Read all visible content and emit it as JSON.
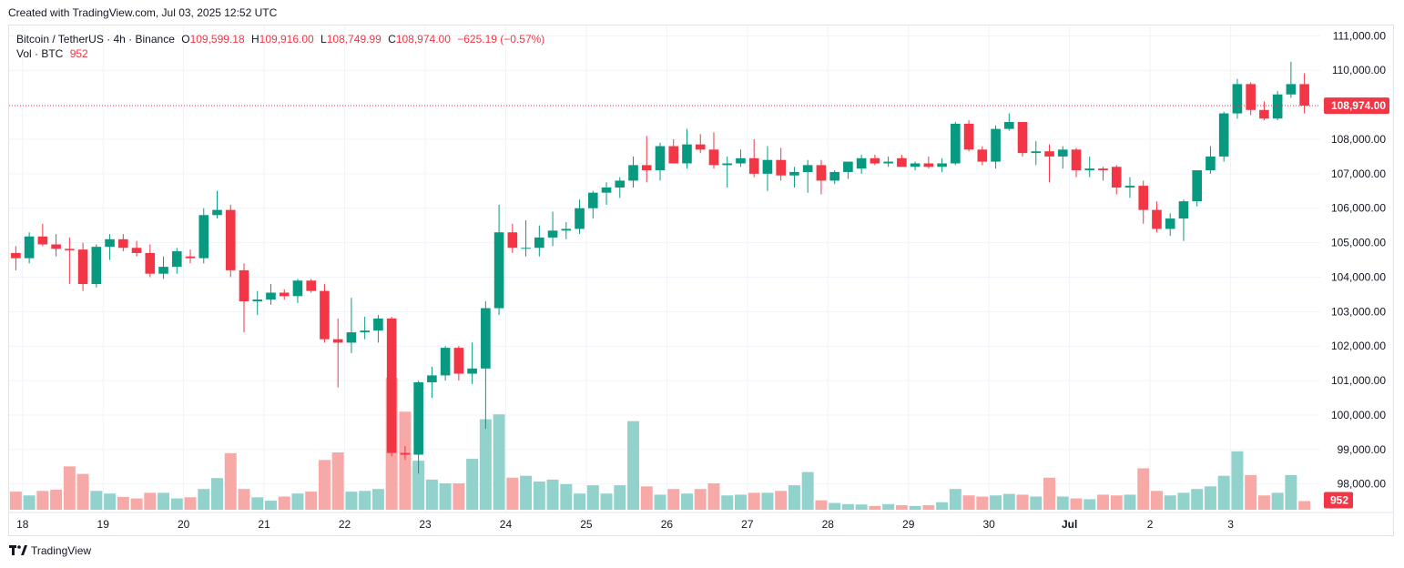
{
  "header": {
    "created_with": "Created with TradingView.com, Jul 03, 2025 12:52 UTC"
  },
  "legend": {
    "symbol": "Bitcoin / TetherUS · 4h · Binance",
    "o_label": "O",
    "o_value": "109,599.18",
    "h_label": "H",
    "h_value": "109,916.00",
    "l_label": "L",
    "l_value": "108,749.99",
    "c_label": "C",
    "c_value": "108,974.00",
    "change": "−625.19 (−0.57%)",
    "vol_label": "Vol · BTC",
    "vol_value": "952"
  },
  "footer": {
    "brand": "TradingView"
  },
  "colors": {
    "up": "#089981",
    "down": "#f23645",
    "up_vol": "#92d2cc",
    "down_vol": "#f7a9a7",
    "grid": "#f0f3fa",
    "axis_text": "#131722"
  },
  "chart_data": {
    "type": "candlestick",
    "interval": "4h",
    "last_price": 108974,
    "last_price_label": "108,974.00",
    "last_volume_label": "952",
    "y_range": [
      97200,
      111300
    ],
    "y_ticks": [
      98000,
      99000,
      100000,
      101000,
      102000,
      103000,
      104000,
      105000,
      106000,
      107000,
      108000,
      109000,
      110000,
      111000
    ],
    "y_tick_labels": [
      "98,000.00",
      "99,000.00",
      "100,000.00",
      "101,000.00",
      "102,000.00",
      "103,000.00",
      "104,000.00",
      "105,000.00",
      "106,000.00",
      "107,000.00",
      "108,000.00",
      "109,000.00",
      "110,000.00",
      "111,000.00"
    ],
    "x_ticks": [
      {
        "label": "18",
        "index": 0.5
      },
      {
        "label": "19",
        "index": 6.5
      },
      {
        "label": "20",
        "index": 12.5
      },
      {
        "label": "21",
        "index": 18.5
      },
      {
        "label": "22",
        "index": 24.5
      },
      {
        "label": "23",
        "index": 30.5
      },
      {
        "label": "24",
        "index": 36.5
      },
      {
        "label": "25",
        "index": 42.5
      },
      {
        "label": "26",
        "index": 48.5
      },
      {
        "label": "27",
        "index": 54.5
      },
      {
        "label": "28",
        "index": 60.5
      },
      {
        "label": "29",
        "index": 66.5
      },
      {
        "label": "30",
        "index": 72.5
      },
      {
        "label": "Jul",
        "index": 78.5
      },
      {
        "label": "2",
        "index": 84.5
      },
      {
        "label": "3",
        "index": 90.5
      }
    ],
    "candles": [
      {
        "o": 104700,
        "h": 104900,
        "l": 104200,
        "c": 104550,
        "v": 48
      },
      {
        "o": 104550,
        "h": 105300,
        "l": 104400,
        "c": 105180,
        "v": 38
      },
      {
        "o": 105180,
        "h": 105550,
        "l": 104900,
        "c": 104950,
        "v": 50
      },
      {
        "o": 104950,
        "h": 105250,
        "l": 104600,
        "c": 104820,
        "v": 53
      },
      {
        "o": 104820,
        "h": 105150,
        "l": 103800,
        "c": 104780,
        "v": 115
      },
      {
        "o": 104800,
        "h": 105000,
        "l": 103600,
        "c": 103800,
        "v": 95
      },
      {
        "o": 103800,
        "h": 104950,
        "l": 103700,
        "c": 104880,
        "v": 50
      },
      {
        "o": 104880,
        "h": 105250,
        "l": 104500,
        "c": 105100,
        "v": 43
      },
      {
        "o": 105100,
        "h": 105250,
        "l": 104750,
        "c": 104850,
        "v": 34
      },
      {
        "o": 104850,
        "h": 105050,
        "l": 104600,
        "c": 104700,
        "v": 30
      },
      {
        "o": 104700,
        "h": 104950,
        "l": 104000,
        "c": 104100,
        "v": 45
      },
      {
        "o": 104100,
        "h": 104600,
        "l": 103950,
        "c": 104300,
        "v": 45
      },
      {
        "o": 104300,
        "h": 104850,
        "l": 104100,
        "c": 104750,
        "v": 30
      },
      {
        "o": 104600,
        "h": 104800,
        "l": 104400,
        "c": 104550,
        "v": 33
      },
      {
        "o": 104550,
        "h": 106000,
        "l": 104400,
        "c": 105800,
        "v": 55
      },
      {
        "o": 105800,
        "h": 106500,
        "l": 105700,
        "c": 105950,
        "v": 84
      },
      {
        "o": 105950,
        "h": 106100,
        "l": 104000,
        "c": 104200,
        "v": 150
      },
      {
        "o": 104200,
        "h": 104400,
        "l": 102400,
        "c": 103300,
        "v": 55
      },
      {
        "o": 103300,
        "h": 103600,
        "l": 102900,
        "c": 103350,
        "v": 33
      },
      {
        "o": 103350,
        "h": 103800,
        "l": 103200,
        "c": 103550,
        "v": 24
      },
      {
        "o": 103550,
        "h": 103650,
        "l": 103350,
        "c": 103450,
        "v": 35
      },
      {
        "o": 103450,
        "h": 103950,
        "l": 103250,
        "c": 103900,
        "v": 43
      },
      {
        "o": 103900,
        "h": 103950,
        "l": 103550,
        "c": 103600,
        "v": 48
      },
      {
        "o": 103600,
        "h": 103800,
        "l": 102100,
        "c": 102200,
        "v": 132
      },
      {
        "o": 102200,
        "h": 102800,
        "l": 100800,
        "c": 102100,
        "v": 152
      },
      {
        "o": 102100,
        "h": 103400,
        "l": 101800,
        "c": 102400,
        "v": 48
      },
      {
        "o": 102400,
        "h": 102850,
        "l": 102200,
        "c": 102450,
        "v": 50
      },
      {
        "o": 102450,
        "h": 102900,
        "l": 102100,
        "c": 102800,
        "v": 55
      },
      {
        "o": 102800,
        "h": 102850,
        "l": 98800,
        "c": 98900,
        "v": 350
      },
      {
        "o": 98900,
        "h": 99100,
        "l": 98700,
        "c": 98850,
        "v": 260
      },
      {
        "o": 98850,
        "h": 101000,
        "l": 98300,
        "c": 100950,
        "v": 130
      },
      {
        "o": 100950,
        "h": 101400,
        "l": 100500,
        "c": 101150,
        "v": 80
      },
      {
        "o": 101150,
        "h": 102000,
        "l": 101000,
        "c": 101950,
        "v": 70
      },
      {
        "o": 101950,
        "h": 102000,
        "l": 101000,
        "c": 101200,
        "v": 70
      },
      {
        "o": 101200,
        "h": 102100,
        "l": 100900,
        "c": 101350,
        "v": 135
      },
      {
        "o": 101350,
        "h": 103300,
        "l": 99600,
        "c": 103100,
        "v": 240
      },
      {
        "o": 103100,
        "h": 106100,
        "l": 102900,
        "c": 105300,
        "v": 253
      },
      {
        "o": 105300,
        "h": 105550,
        "l": 104700,
        "c": 104850,
        "v": 85
      },
      {
        "o": 104850,
        "h": 105650,
        "l": 104600,
        "c": 104850,
        "v": 90
      },
      {
        "o": 104850,
        "h": 105500,
        "l": 104600,
        "c": 105150,
        "v": 75
      },
      {
        "o": 105150,
        "h": 105900,
        "l": 104900,
        "c": 105350,
        "v": 80
      },
      {
        "o": 105350,
        "h": 105600,
        "l": 105100,
        "c": 105400,
        "v": 68
      },
      {
        "o": 105400,
        "h": 106250,
        "l": 105250,
        "c": 106000,
        "v": 43
      },
      {
        "o": 106000,
        "h": 106500,
        "l": 105700,
        "c": 106450,
        "v": 65
      },
      {
        "o": 106450,
        "h": 106750,
        "l": 106100,
        "c": 106600,
        "v": 43
      },
      {
        "o": 106600,
        "h": 106900,
        "l": 106300,
        "c": 106800,
        "v": 65
      },
      {
        "o": 106800,
        "h": 107500,
        "l": 106600,
        "c": 107250,
        "v": 235
      },
      {
        "o": 107250,
        "h": 108100,
        "l": 106750,
        "c": 107100,
        "v": 62
      },
      {
        "o": 107100,
        "h": 107900,
        "l": 106800,
        "c": 107800,
        "v": 40
      },
      {
        "o": 107800,
        "h": 108000,
        "l": 107300,
        "c": 107300,
        "v": 55
      },
      {
        "o": 107300,
        "h": 108300,
        "l": 107150,
        "c": 107850,
        "v": 43
      },
      {
        "o": 107850,
        "h": 108150,
        "l": 107600,
        "c": 107700,
        "v": 55
      },
      {
        "o": 107700,
        "h": 108200,
        "l": 107150,
        "c": 107250,
        "v": 70
      },
      {
        "o": 107250,
        "h": 107500,
        "l": 106600,
        "c": 107300,
        "v": 38
      },
      {
        "o": 107300,
        "h": 107700,
        "l": 107200,
        "c": 107450,
        "v": 40
      },
      {
        "o": 107450,
        "h": 108000,
        "l": 106900,
        "c": 107000,
        "v": 45
      },
      {
        "o": 107000,
        "h": 107800,
        "l": 106500,
        "c": 107400,
        "v": 45
      },
      {
        "o": 107400,
        "h": 107750,
        "l": 106800,
        "c": 106950,
        "v": 50
      },
      {
        "o": 106950,
        "h": 107200,
        "l": 106600,
        "c": 107050,
        "v": 65
      },
      {
        "o": 107050,
        "h": 107400,
        "l": 106450,
        "c": 107250,
        "v": 100
      },
      {
        "o": 107250,
        "h": 107400,
        "l": 106400,
        "c": 106800,
        "v": 25
      },
      {
        "o": 106800,
        "h": 107100,
        "l": 106700,
        "c": 107050,
        "v": 18
      },
      {
        "o": 107050,
        "h": 107250,
        "l": 106850,
        "c": 107350,
        "v": 15
      },
      {
        "o": 107150,
        "h": 107550,
        "l": 107000,
        "c": 107450,
        "v": 14
      },
      {
        "o": 107450,
        "h": 107550,
        "l": 107250,
        "c": 107300,
        "v": 10
      },
      {
        "o": 107300,
        "h": 107500,
        "l": 107200,
        "c": 107350,
        "v": 15
      },
      {
        "o": 107450,
        "h": 107550,
        "l": 107200,
        "c": 107200,
        "v": 12
      },
      {
        "o": 107200,
        "h": 107350,
        "l": 107100,
        "c": 107300,
        "v": 10
      },
      {
        "o": 107300,
        "h": 107500,
        "l": 107150,
        "c": 107200,
        "v": 12
      },
      {
        "o": 107200,
        "h": 107450,
        "l": 107050,
        "c": 107300,
        "v": 20
      },
      {
        "o": 107300,
        "h": 108500,
        "l": 107250,
        "c": 108450,
        "v": 55
      },
      {
        "o": 108450,
        "h": 108550,
        "l": 107650,
        "c": 107700,
        "v": 38
      },
      {
        "o": 107700,
        "h": 107800,
        "l": 107250,
        "c": 107350,
        "v": 35
      },
      {
        "o": 107350,
        "h": 108400,
        "l": 107150,
        "c": 108300,
        "v": 38
      },
      {
        "o": 108300,
        "h": 108750,
        "l": 108250,
        "c": 108500,
        "v": 42
      },
      {
        "o": 108500,
        "h": 108500,
        "l": 107500,
        "c": 107600,
        "v": 40
      },
      {
        "o": 107600,
        "h": 107950,
        "l": 107250,
        "c": 107650,
        "v": 35
      },
      {
        "o": 107650,
        "h": 107850,
        "l": 106750,
        "c": 107500,
        "v": 85
      },
      {
        "o": 107500,
        "h": 107800,
        "l": 107150,
        "c": 107700,
        "v": 35
      },
      {
        "o": 107700,
        "h": 107750,
        "l": 106900,
        "c": 107100,
        "v": 30
      },
      {
        "o": 107100,
        "h": 107500,
        "l": 106900,
        "c": 107150,
        "v": 28
      },
      {
        "o": 107150,
        "h": 107200,
        "l": 106800,
        "c": 107100,
        "v": 40
      },
      {
        "o": 107200,
        "h": 107250,
        "l": 106400,
        "c": 106600,
        "v": 38
      },
      {
        "o": 106600,
        "h": 106900,
        "l": 106300,
        "c": 106650,
        "v": 40
      },
      {
        "o": 106650,
        "h": 106800,
        "l": 105550,
        "c": 105950,
        "v": 110
      },
      {
        "o": 105950,
        "h": 106200,
        "l": 105300,
        "c": 105400,
        "v": 50
      },
      {
        "o": 105400,
        "h": 105850,
        "l": 105200,
        "c": 105700,
        "v": 38
      },
      {
        "o": 105700,
        "h": 106250,
        "l": 105050,
        "c": 106200,
        "v": 45
      },
      {
        "o": 106200,
        "h": 107100,
        "l": 106050,
        "c": 107100,
        "v": 55
      },
      {
        "o": 107100,
        "h": 107800,
        "l": 107000,
        "c": 107500,
        "v": 62
      },
      {
        "o": 107500,
        "h": 108800,
        "l": 107350,
        "c": 108750,
        "v": 90
      },
      {
        "o": 108750,
        "h": 109750,
        "l": 108600,
        "c": 109600,
        "v": 155
      },
      {
        "o": 109600,
        "h": 109650,
        "l": 108700,
        "c": 108850,
        "v": 92
      },
      {
        "o": 108850,
        "h": 109100,
        "l": 108550,
        "c": 108600,
        "v": 38
      },
      {
        "o": 108600,
        "h": 109400,
        "l": 108550,
        "c": 109300,
        "v": 45
      },
      {
        "o": 109300,
        "h": 110250,
        "l": 109200,
        "c": 109600,
        "v": 92
      },
      {
        "o": 109599.18,
        "h": 109916,
        "l": 108749.99,
        "c": 108974,
        "v": 23
      }
    ]
  }
}
